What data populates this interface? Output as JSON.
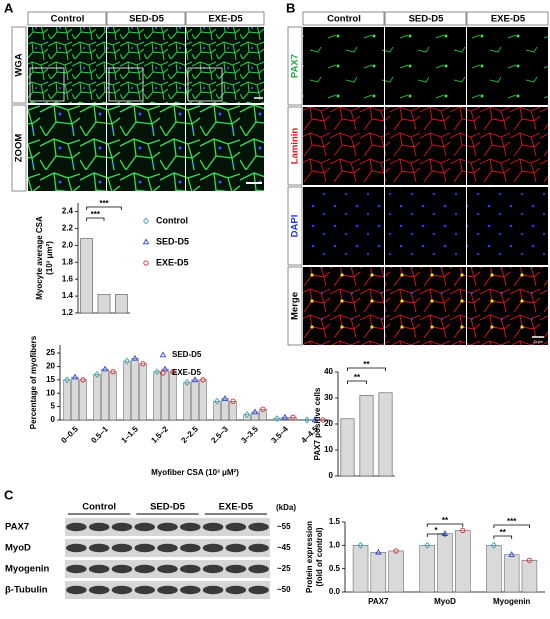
{
  "figure": {
    "panel_labels": [
      "A",
      "B",
      "C"
    ],
    "a_columns": [
      "Control",
      "SED-D5",
      "EXE-D5"
    ],
    "a_rows": [
      "WGA",
      "ZOOM"
    ],
    "b_columns": [
      "Control",
      "SED-D5",
      "EXE-D5"
    ],
    "b_rows": [
      "PAX7",
      "Laminin",
      "DAPI",
      "Merge"
    ],
    "scale_bar": "20 μm",
    "c_groups": [
      "Control",
      "SED-D5",
      "EXE-D5"
    ],
    "c_rows": [
      "PAX7",
      "MyoD",
      "Myogenin",
      "β-Tubulin"
    ],
    "c_unit": "(kDa)",
    "c_sizes": [
      "~55",
      "~45",
      "~25",
      "~50"
    ]
  },
  "chart_data": [
    {
      "type": "bar",
      "ylabel": [
        "Myocyte average CSA",
        "(10³ μm²)"
      ],
      "values": [
        2.08,
        1.42,
        1.42
      ],
      "color": "#d9d9d9",
      "ylim": [
        1.2,
        2.5
      ],
      "yticks": [
        1.2,
        1.4,
        1.6,
        1.8,
        {
          "value": 2.0,
          "label": "2.0"
        },
        2.2,
        2.4
      ],
      "legend": [
        {
          "name": "Control",
          "color": "#3aa6b9",
          "marker": "diamond"
        },
        {
          "name": "SED-D5",
          "color": "#2f45d8",
          "marker": "triangle"
        },
        {
          "name": "EXE-D5",
          "color": "#e0262b",
          "marker": "circle"
        }
      ],
      "annotations": [
        "***",
        "***"
      ]
    },
    {
      "type": "grouped_bar",
      "ylabel": [
        "Percentage of myofibers"
      ],
      "xlabel": "Myofiber CSA (10³ μM²)",
      "categories": [
        "0–0.5",
        "0.5–1",
        "1–1.5",
        "1.5–2",
        "2–2.5",
        "2.5–3",
        "3–3.5",
        "3.5–4",
        "4–4.5"
      ],
      "bar_color": "#d9d9d9",
      "xtick_rotation": 45,
      "series": [
        {
          "name": "Control",
          "color": "#3aa6b9",
          "marker": "diamond",
          "in_legend": false,
          "values": [
            15,
            17,
            22,
            18,
            14,
            7,
            2,
            0.5,
            0
          ]
        },
        {
          "name": "SED-D5",
          "color": "#2f45d8",
          "marker": "triangle",
          "in_legend": true,
          "values": [
            16,
            19,
            23,
            19,
            15,
            8,
            3,
            1,
            0
          ]
        },
        {
          "name": "EXE-D5",
          "color": "#e0262b",
          "marker": "circle",
          "in_legend": true,
          "values": [
            15,
            18,
            21,
            18,
            15,
            7,
            4,
            1,
            0
          ]
        }
      ],
      "ylim": [
        0,
        28
      ],
      "yticks": [
        0,
        5,
        10,
        15,
        20,
        25
      ]
    },
    {
      "type": "bar",
      "ylabel": [
        "PAX7 positive cells"
      ],
      "values": [
        22,
        31,
        32
      ],
      "color": "#d9d9d9",
      "ylim": [
        0,
        40
      ],
      "yticks": [
        0,
        10,
        20,
        30,
        40
      ],
      "annotations": [
        "**",
        "**"
      ]
    },
    {
      "type": "grouped_bar",
      "ylabel": [
        "Protein expression",
        "(fold of control)"
      ],
      "categories": [
        "PAX7",
        "MyoD",
        "Myogenin"
      ],
      "bar_color": "#d9d9d9",
      "xtick_rotation": 0,
      "series": [
        {
          "name": "Control",
          "color": "#3aa6b9",
          "marker": "diamond",
          "in_legend": false,
          "values": [
            1.0,
            1.0,
            1.0
          ]
        },
        {
          "name": "SED-D5",
          "color": "#2f45d8",
          "marker": "triangle",
          "in_legend": false,
          "values": [
            0.85,
            1.25,
            0.8
          ]
        },
        {
          "name": "EXE-D5",
          "color": "#e0262b",
          "marker": "circle",
          "in_legend": false,
          "values": [
            0.88,
            1.32,
            0.68
          ]
        }
      ],
      "ylim": [
        0,
        1.5
      ],
      "yticks": [
        {
          "value": 0,
          "label": "0.0"
        },
        0.5,
        {
          "value": 1,
          "label": "1.0"
        },
        1.5
      ],
      "annotations": [
        "**",
        "*",
        "***",
        "**"
      ]
    }
  ]
}
